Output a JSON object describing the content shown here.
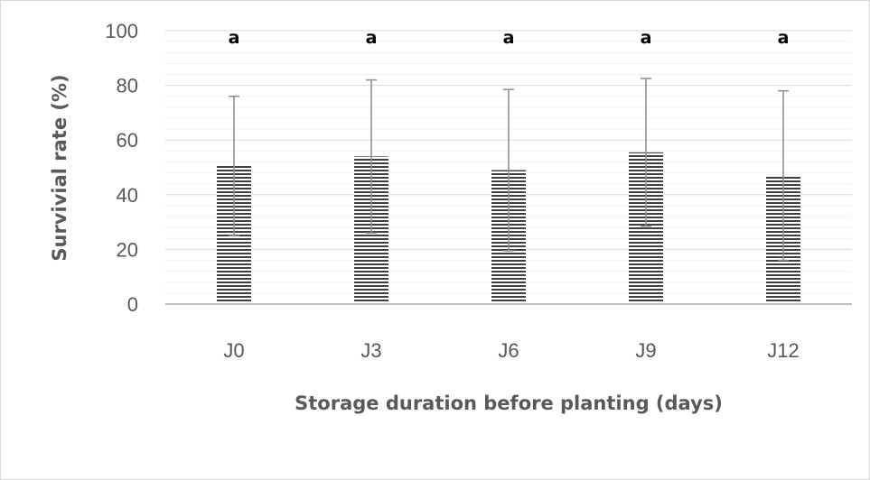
{
  "chart_data": {
    "type": "bar",
    "categories": [
      "J0",
      "J3",
      "J6",
      "J9",
      "J12"
    ],
    "values": [
      50.5,
      54,
      49,
      55.5,
      47
    ],
    "error_plus": [
      25.5,
      28,
      29.5,
      27,
      31
    ],
    "error_minus": [
      25.5,
      28,
      29.5,
      27,
      31
    ],
    "annotations": [
      "a",
      "a",
      "a",
      "a",
      "a"
    ],
    "xlabel": "Storage duration before planting (days)",
    "ylabel": "Survivial rate (%)",
    "ylim": [
      0,
      100
    ],
    "yticks": [
      0,
      20,
      40,
      60,
      80,
      100
    ],
    "minor_grid_step": 4,
    "grid": true,
    "legend": "none",
    "colors": {
      "bar_fill": "#ffffff",
      "bar_stripe": "#404040",
      "grid_major": "#d9d9d9",
      "grid_minor": "#f0f0f0",
      "axis": "#bfbfbf",
      "error_bar": "#8c8c8c"
    }
  }
}
